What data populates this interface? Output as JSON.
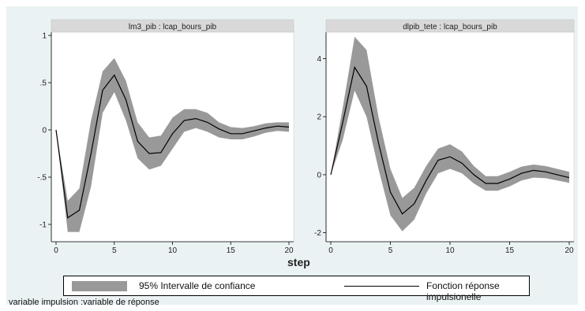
{
  "chart_data": [
    {
      "type": "area",
      "title": "lm3_pib : lcap_bours_pib",
      "x": [
        0,
        1,
        2,
        3,
        4,
        5,
        6,
        7,
        8,
        9,
        10,
        11,
        12,
        13,
        14,
        15,
        16,
        17,
        18,
        19,
        20
      ],
      "series": [
        {
          "name": "Fonction réponse impulsionelle",
          "values": [
            0,
            -0.93,
            -0.85,
            -0.25,
            0.42,
            0.58,
            0.32,
            -0.12,
            -0.25,
            -0.24,
            -0.04,
            0.1,
            0.12,
            0.08,
            0.01,
            -0.04,
            -0.04,
            -0.01,
            0.02,
            0.04,
            0.03
          ]
        },
        {
          "name": "lower",
          "values": [
            0,
            -1.08,
            -1.08,
            -0.6,
            0.18,
            0.4,
            0.1,
            -0.3,
            -0.42,
            -0.38,
            -0.2,
            -0.02,
            0.02,
            -0.02,
            -0.08,
            -0.1,
            -0.1,
            -0.07,
            -0.03,
            -0.01,
            -0.02
          ]
        },
        {
          "name": "upper",
          "values": [
            0,
            -0.75,
            -0.62,
            0.1,
            0.62,
            0.76,
            0.52,
            0.08,
            -0.08,
            -0.06,
            0.13,
            0.22,
            0.22,
            0.18,
            0.08,
            0.03,
            0.02,
            0.04,
            0.07,
            0.08,
            0.08
          ]
        }
      ],
      "ylim": [
        -1.15,
        1.0
      ],
      "xlim": [
        0,
        20
      ],
      "yticks": [
        1,
        0.5,
        0,
        -0.5,
        -1
      ],
      "ytick_labels": [
        "1",
        ".5",
        "0",
        "-.5",
        "-1"
      ],
      "xticks": [
        0,
        5,
        10,
        15,
        20
      ],
      "xtick_labels": [
        "0",
        "5",
        "10",
        "15",
        "20"
      ],
      "grid": false
    },
    {
      "type": "area",
      "title": "dlpib_tete : lcap_bours_pib",
      "x": [
        0,
        1,
        2,
        3,
        4,
        5,
        6,
        7,
        8,
        9,
        10,
        11,
        12,
        13,
        14,
        15,
        16,
        17,
        18,
        19,
        20
      ],
      "series": [
        {
          "name": "Fonction réponse impulsionelle",
          "values": [
            0,
            1.8,
            3.7,
            3.05,
            1.1,
            -0.6,
            -1.35,
            -1.0,
            -0.2,
            0.5,
            0.62,
            0.4,
            0.0,
            -0.3,
            -0.3,
            -0.15,
            0.05,
            0.15,
            0.1,
            0.0,
            -0.1
          ]
        },
        {
          "name": "lower",
          "values": [
            0,
            1.2,
            2.9,
            2.0,
            0.2,
            -1.4,
            -1.95,
            -1.55,
            -0.65,
            0.05,
            0.2,
            0.05,
            -0.3,
            -0.55,
            -0.55,
            -0.4,
            -0.2,
            -0.1,
            -0.12,
            -0.2,
            -0.28
          ]
        },
        {
          "name": "upper",
          "values": [
            0,
            2.3,
            4.75,
            4.3,
            2.0,
            0.2,
            -0.8,
            -0.45,
            0.3,
            0.9,
            1.05,
            0.8,
            0.3,
            -0.05,
            -0.05,
            0.1,
            0.28,
            0.35,
            0.3,
            0.2,
            0.1
          ]
        }
      ],
      "ylim": [
        -2.2,
        4.8
      ],
      "xlim": [
        0,
        20
      ],
      "yticks": [
        4,
        2,
        0,
        -2
      ],
      "ytick_labels": [
        "4",
        "2",
        "0",
        "-2"
      ],
      "xticks": [
        0,
        5,
        10,
        15,
        20
      ],
      "xtick_labels": [
        "0",
        "5",
        "10",
        "15",
        "20"
      ],
      "grid": false
    }
  ],
  "xlabel": "step",
  "legend": {
    "band_label": "95% Intervalle de confiance",
    "line_label": "Fonction réponse impulsionelle"
  },
  "note": "variable impulsion :variable de  réponse",
  "colors": {
    "band": "#999999",
    "line": "#000000",
    "plot_bg": "#ffffff",
    "frame_bg": "#eaf2f3",
    "title_bg": "#d9d9d9"
  }
}
